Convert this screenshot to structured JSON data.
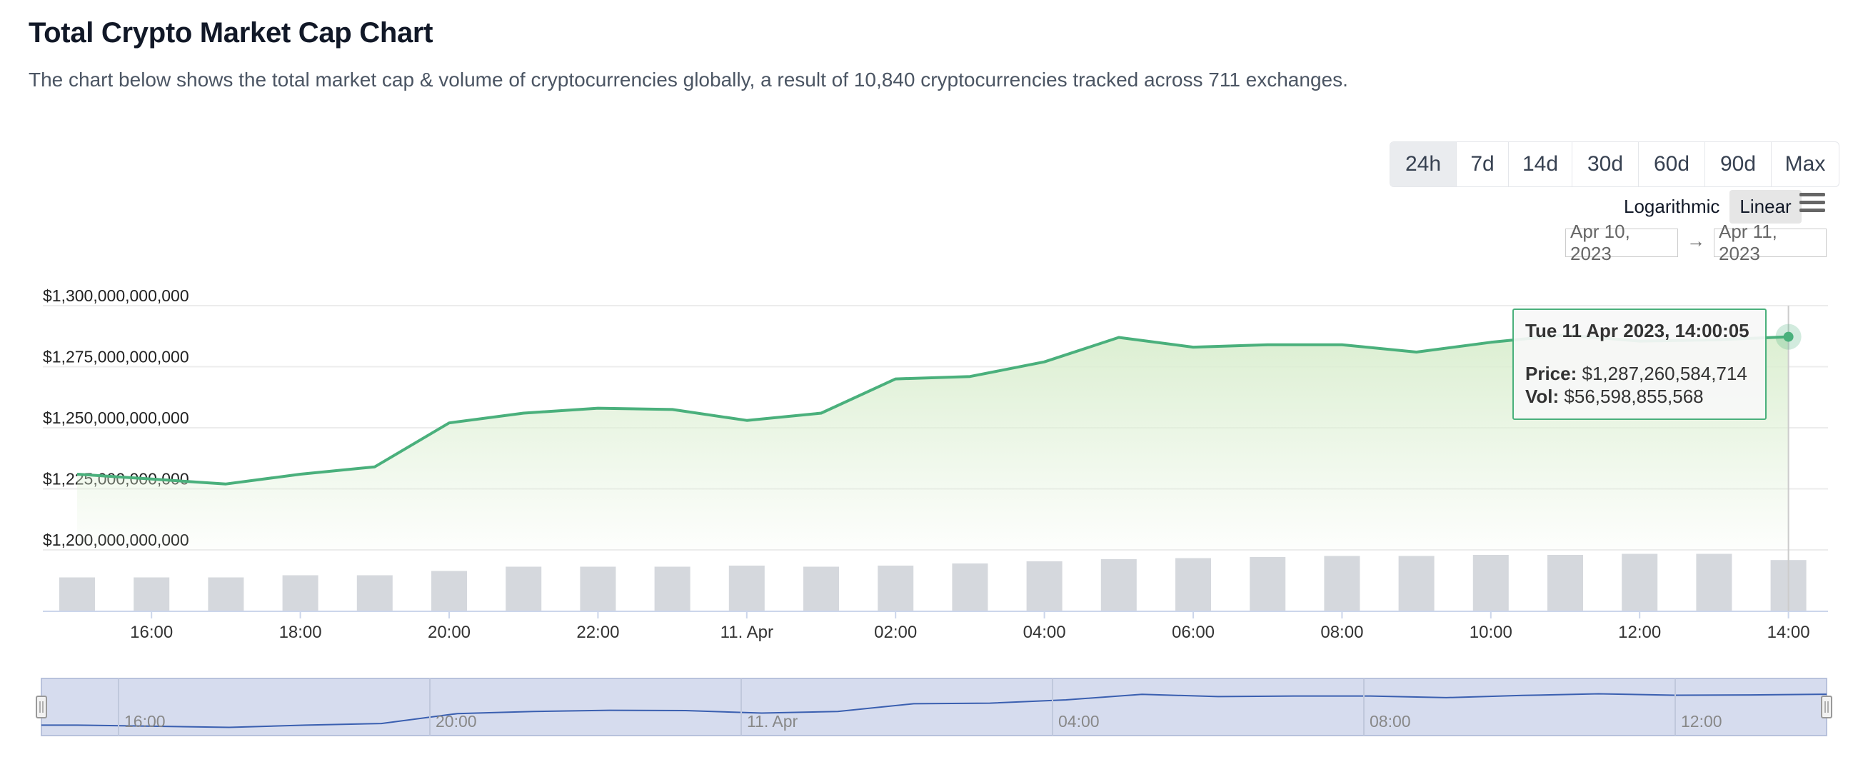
{
  "header": {
    "title": "Total Crypto Market Cap Chart",
    "subtitle": "The chart below shows the total market cap & volume of cryptocurrencies globally, a result of 10,840 cryptocurrencies tracked across 711 exchanges."
  },
  "controls": {
    "ranges": [
      "24h",
      "7d",
      "14d",
      "30d",
      "60d",
      "90d",
      "Max"
    ],
    "active_range": "24h",
    "scales": [
      "Logarithmic",
      "Linear"
    ],
    "active_scale": "Linear",
    "menu_icon": "hamburger-menu-icon",
    "date_from": "Apr 10, 2023",
    "date_to": "Apr 11, 2023",
    "date_arrow": "→"
  },
  "tooltip": {
    "date": "Tue 11 Apr 2023, 14:00:05",
    "price_label": "Price:",
    "price_value": "$1,287,260,584,714",
    "vol_label": "Vol:",
    "vol_value": "$56,598,855,568"
  },
  "colors": {
    "line": "#4ab07c",
    "area_top": "#dcefd2",
    "volume_bar": "#d5d8dd",
    "navigator_fill": "#d6dcee",
    "navigator_line": "#3a5fb0"
  },
  "chart_data": {
    "type": "line",
    "title": "Total Crypto Market Cap Chart",
    "x_start": "2023-04-10 15:00",
    "x_step_minutes": 60,
    "x_end": "2023-04-11 14:00",
    "series": [
      {
        "name": "Price",
        "type": "area",
        "values": [
          1231000000000,
          1229000000000,
          1227000000000,
          1231000000000,
          1234000000000,
          1252000000000,
          1256000000000,
          1258000000000,
          1257500000000,
          1253000000000,
          1256000000000,
          1270000000000,
          1271000000000,
          1277000000000,
          1287000000000,
          1283000000000,
          1284000000000,
          1284000000000,
          1281000000000,
          1285000000000,
          1288000000000,
          1285500000000,
          1286000000000,
          1287260584714
        ]
      },
      {
        "name": "Vol",
        "type": "bar",
        "values": [
          48.5,
          48.5,
          48.5,
          49.5,
          49.5,
          51.5,
          53.5,
          53.5,
          53.5,
          54,
          53.5,
          54,
          55,
          56,
          57,
          57.5,
          58,
          58.5,
          58.5,
          59,
          59,
          59.5,
          59.5,
          56.6
        ]
      }
    ],
    "y_ticks": [
      "$1,200,000,000,000",
      "$1,225,000,000,000",
      "$1,250,000,000,000",
      "$1,275,000,000,000",
      "$1,300,000,000,000"
    ],
    "ylim": [
      1200000000000,
      1300000000000
    ],
    "x_ticks": [
      "16:00",
      "18:00",
      "20:00",
      "22:00",
      "11. Apr",
      "02:00",
      "04:00",
      "06:00",
      "08:00",
      "10:00",
      "12:00",
      "14:00"
    ],
    "navigator_ticks": [
      "16:00",
      "20:00",
      "11. Apr",
      "04:00",
      "08:00",
      "12:00"
    ],
    "grid": true,
    "legend": "none"
  }
}
